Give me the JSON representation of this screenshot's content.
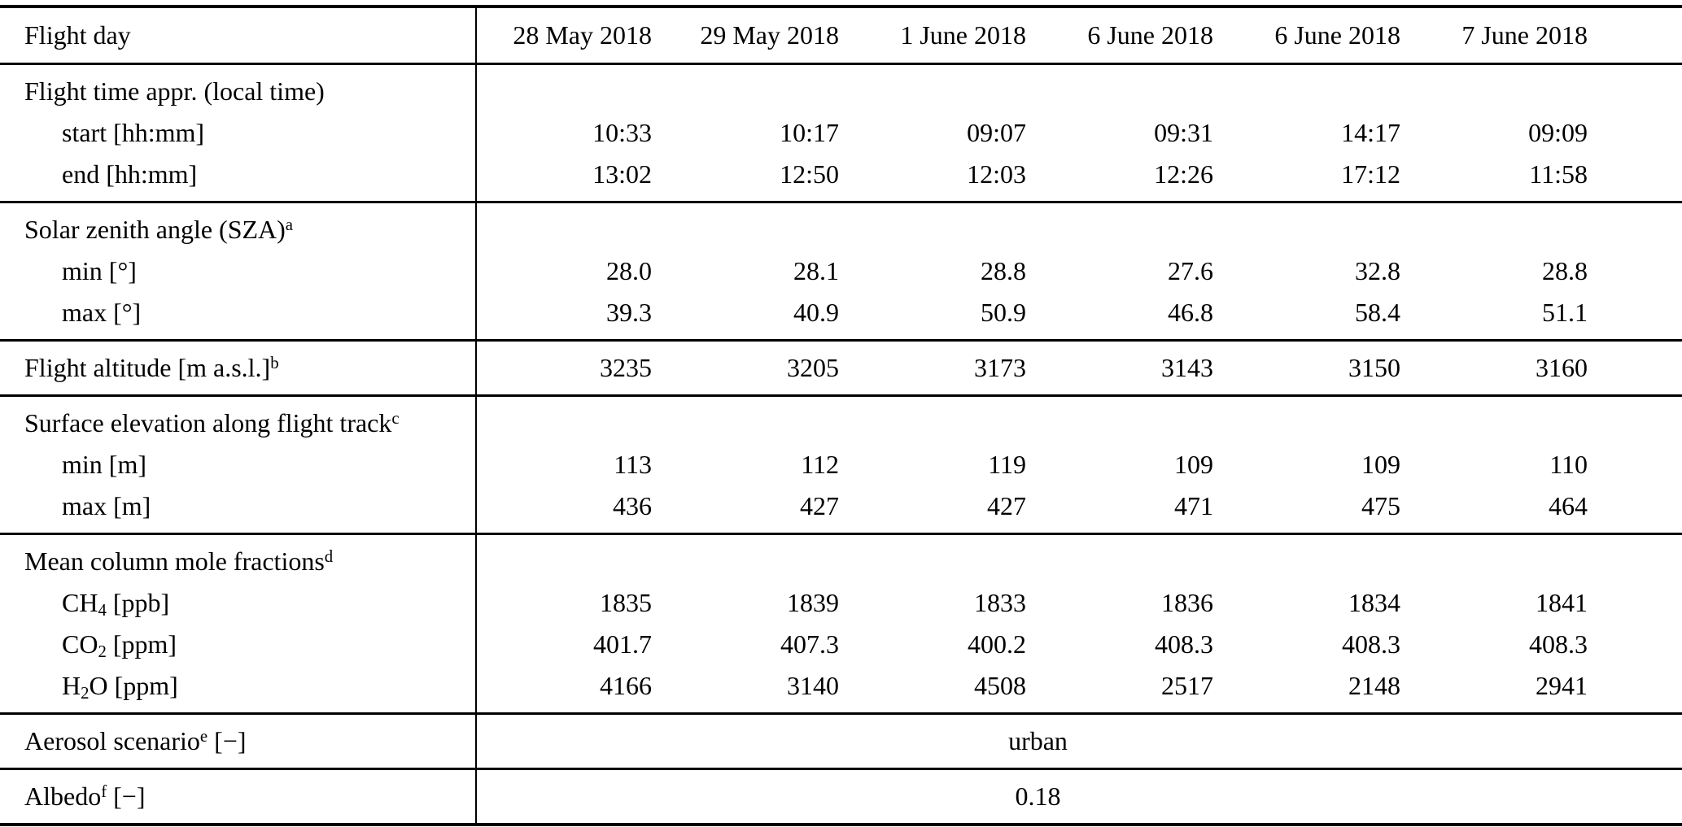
{
  "page": {
    "background": "#ffffff",
    "text_color": "#000000",
    "rule_color": "#000000"
  },
  "table": {
    "corner_label": "Flight day",
    "date_columns": [
      "28 May 2018",
      "29 May 2018",
      "1 June 2018",
      "6 June 2018",
      "6 June 2018",
      "7 June 2018"
    ],
    "sections": [
      {
        "name": "flight-time",
        "rows": [
          {
            "type": "title",
            "label": [
              {
                "t": "Flight time appr. (local time)"
              }
            ]
          },
          {
            "type": "data",
            "indent": true,
            "label": [
              {
                "t": "start [hh:mm]"
              }
            ],
            "values": [
              "10:33",
              "10:17",
              "09:07",
              "09:31",
              "14:17",
              "09:09"
            ]
          },
          {
            "type": "data",
            "indent": true,
            "label": [
              {
                "t": "end [hh:mm]"
              }
            ],
            "values": [
              "13:02",
              "12:50",
              "12:03",
              "12:26",
              "17:12",
              "11:58"
            ]
          }
        ]
      },
      {
        "name": "solar-zenith-angle",
        "rows": [
          {
            "type": "title",
            "label": [
              {
                "t": "Solar zenith angle (SZA)"
              },
              {
                "t": "a",
                "style": "sup"
              }
            ]
          },
          {
            "type": "data",
            "indent": true,
            "label": [
              {
                "t": "min [°]"
              }
            ],
            "values": [
              "28.0",
              "28.1",
              "28.8",
              "27.6",
              "32.8",
              "28.8"
            ]
          },
          {
            "type": "data",
            "indent": true,
            "label": [
              {
                "t": "max [°]"
              }
            ],
            "values": [
              "39.3",
              "40.9",
              "50.9",
              "46.8",
              "58.4",
              "51.1"
            ]
          }
        ]
      },
      {
        "name": "flight-altitude",
        "rows": [
          {
            "type": "data",
            "indent": false,
            "label": [
              {
                "t": "Flight altitude [m a.s.l.]"
              },
              {
                "t": "b",
                "style": "sup"
              }
            ],
            "values": [
              "3235",
              "3205",
              "3173",
              "3143",
              "3150",
              "3160"
            ]
          }
        ]
      },
      {
        "name": "surface-elevation",
        "rows": [
          {
            "type": "title",
            "label": [
              {
                "t": "Surface elevation along flight track"
              },
              {
                "t": "c",
                "style": "sup"
              }
            ]
          },
          {
            "type": "data",
            "indent": true,
            "label": [
              {
                "t": "min [m]"
              }
            ],
            "values": [
              "113",
              "112",
              "119",
              "109",
              "109",
              "110"
            ]
          },
          {
            "type": "data",
            "indent": true,
            "label": [
              {
                "t": "max [m]"
              }
            ],
            "values": [
              "436",
              "427",
              "427",
              "471",
              "475",
              "464"
            ]
          }
        ]
      },
      {
        "name": "mole-fractions",
        "rows": [
          {
            "type": "title",
            "label": [
              {
                "t": "Mean column mole fractions"
              },
              {
                "t": "d",
                "style": "sup"
              }
            ]
          },
          {
            "type": "data",
            "indent": true,
            "label": [
              {
                "t": "CH"
              },
              {
                "t": "4",
                "style": "sub"
              },
              {
                "t": " [ppb]"
              }
            ],
            "values": [
              "1835",
              "1839",
              "1833",
              "1836",
              "1834",
              "1841"
            ]
          },
          {
            "type": "data",
            "indent": true,
            "label": [
              {
                "t": "CO"
              },
              {
                "t": "2",
                "style": "sub"
              },
              {
                "t": " [ppm]"
              }
            ],
            "values": [
              "401.7",
              "407.3",
              "400.2",
              "408.3",
              "408.3",
              "408.3"
            ]
          },
          {
            "type": "data",
            "indent": true,
            "label": [
              {
                "t": "H"
              },
              {
                "t": "2",
                "style": "sub"
              },
              {
                "t": "O [ppm]"
              }
            ],
            "values": [
              "4166",
              "3140",
              "4508",
              "2517",
              "2148",
              "2941"
            ]
          }
        ]
      },
      {
        "name": "aerosol-scenario",
        "rows": [
          {
            "type": "span",
            "label": [
              {
                "t": "Aerosol scenario"
              },
              {
                "t": "e",
                "style": "sup"
              },
              {
                "t": " [−]"
              }
            ],
            "value": "urban"
          }
        ]
      },
      {
        "name": "albedo",
        "rows": [
          {
            "type": "span",
            "label": [
              {
                "t": "Albedo"
              },
              {
                "t": "f",
                "style": "sup"
              },
              {
                "t": " [−]"
              }
            ],
            "value": "0.18"
          }
        ]
      }
    ]
  }
}
